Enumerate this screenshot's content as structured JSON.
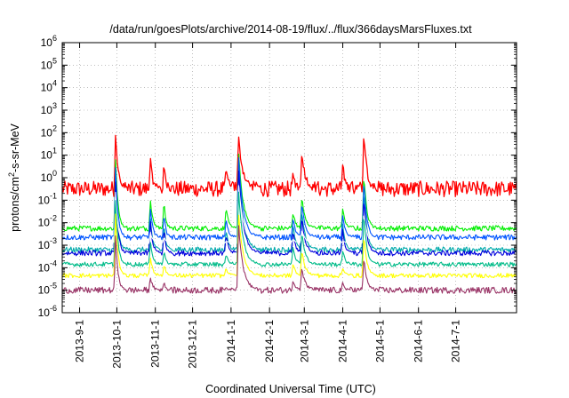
{
  "chart_data": {
    "type": "line",
    "title": "/data/run/goesPlots/archive/2014-08-19/flux/../flux/366daysMarsFluxes.txt",
    "xlabel": "Coordinated Universal Time (UTC)",
    "ylabel": {
      "base": "protons/cm",
      "sup": "2",
      "rest": "-s-sr-MeV"
    },
    "yscale": "log",
    "ylim": [
      "1e-6",
      "1e6"
    ],
    "xlim": [
      "2013-08-18",
      "2014-08-19"
    ],
    "grid": "dotted",
    "legend": "none",
    "y_ticks": [
      {
        "base": "10",
        "exp": "6"
      },
      {
        "base": "10",
        "exp": "5"
      },
      {
        "base": "10",
        "exp": "4"
      },
      {
        "base": "10",
        "exp": "3"
      },
      {
        "base": "10",
        "exp": "2"
      },
      {
        "base": "10",
        "exp": "1"
      },
      {
        "base": "10",
        "exp": "0"
      },
      {
        "base": "10",
        "exp": "-1"
      },
      {
        "base": "10",
        "exp": "-2"
      },
      {
        "base": "10",
        "exp": "-3"
      },
      {
        "base": "10",
        "exp": "-4"
      },
      {
        "base": "10",
        "exp": "-5"
      },
      {
        "base": "10",
        "exp": "-6"
      }
    ],
    "x_ticks": [
      "2013-9-1",
      "2013-10-1",
      "2013-11-1",
      "2013-12-1",
      "2014-1-1",
      "2014-2-1",
      "2014-3-1",
      "2014-4-1",
      "2014-5-1",
      "2014-6-1",
      "2014-7-1"
    ],
    "event_peaks": [
      {
        "date": "2013-09-30",
        "width_days": 4
      },
      {
        "date": "2013-10-28",
        "width_days": 4
      },
      {
        "date": "2013-11-08",
        "width_days": 3
      },
      {
        "date": "2013-12-28",
        "width_days": 4
      },
      {
        "date": "2014-01-07",
        "width_days": 8
      },
      {
        "date": "2014-02-20",
        "width_days": 4
      },
      {
        "date": "2014-02-27",
        "width_days": 6
      },
      {
        "date": "2014-04-01",
        "width_days": 4
      },
      {
        "date": "2014-04-18",
        "width_days": 5
      }
    ],
    "series": [
      {
        "color": "#ff0000",
        "baseline_log10": -0.5,
        "noise": 0.35,
        "peak_log10": [
          2.2,
          0.8,
          0.6,
          0.5,
          1.8,
          0.2,
          1.3,
          0.6,
          2.2
        ]
      },
      {
        "color": "#00ee00",
        "baseline_log10": -2.25,
        "noise": 0.12,
        "peak_log10": [
          1.0,
          -0.9,
          -1.0,
          -1.3,
          1.2,
          -1.5,
          -0.8,
          -1.3,
          0.2
        ]
      },
      {
        "color": "#00aaaa",
        "baseline_log10": -3.2,
        "noise": 0.12,
        "peak_log10": [
          0.2,
          -1.8,
          -2.0,
          -2.3,
          0.8,
          -2.0,
          -1.4,
          -2.0,
          -0.5
        ]
      },
      {
        "color": "#0055ff",
        "baseline_log10": -2.65,
        "noise": 0.12,
        "peak_log10": [
          0.6,
          -1.3,
          -1.5,
          -1.8,
          1.0,
          -1.7,
          -1.1,
          -1.6,
          0.0
        ]
      },
      {
        "color": "#0000dd",
        "baseline_log10": -3.35,
        "noise": 0.12,
        "peak_log10": [
          0.0,
          -1.9,
          -2.2,
          -2.5,
          0.5,
          -2.3,
          -1.7,
          -2.3,
          -0.8
        ]
      },
      {
        "color": "#ffffff",
        "baseline_log10": -2.9,
        "noise": 0.05,
        "peak_log10": [
          -0.5,
          -2.4,
          -2.6,
          -2.8,
          -0.2,
          -2.7,
          -2.3,
          -2.8,
          -1.5
        ]
      },
      {
        "color": "#00bb88",
        "baseline_log10": -3.85,
        "noise": 0.1,
        "peak_log10": [
          -0.8,
          -2.8,
          -3.2,
          -3.4,
          -0.5,
          -3.0,
          -2.4,
          -3.2,
          -1.5
        ]
      },
      {
        "color": "#ffff00",
        "baseline_log10": -4.35,
        "noise": 0.1,
        "peak_log10": [
          -1.5,
          -3.5,
          -3.8,
          -4.0,
          -1.5,
          -3.8,
          -3.2,
          -4.0,
          -2.5
        ]
      },
      {
        "color": "#993366",
        "baseline_log10": -5.0,
        "noise": 0.14,
        "peak_log10": [
          -2.5,
          -4.4,
          -4.6,
          -4.8,
          -2.0,
          -4.5,
          -4.0,
          -4.7,
          -3.5
        ]
      }
    ]
  }
}
